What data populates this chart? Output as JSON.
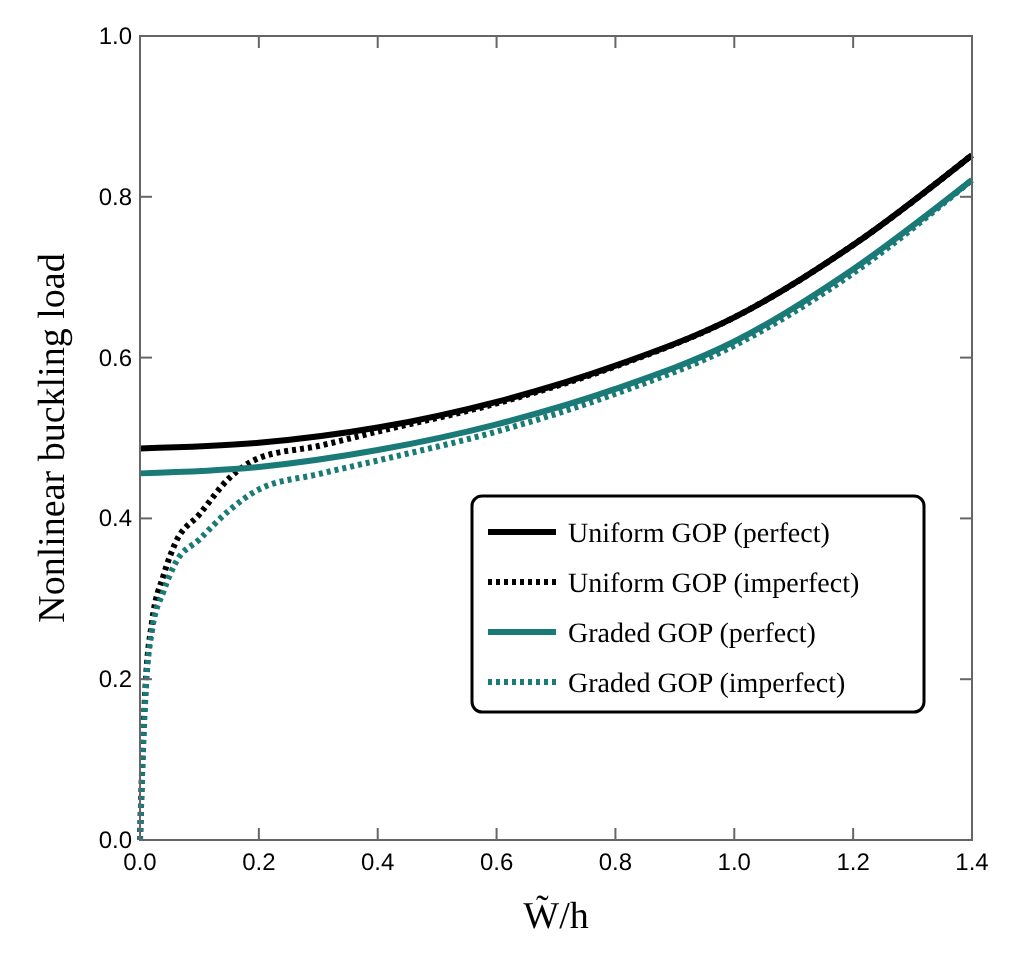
{
  "chart_data": {
    "type": "line",
    "xlabel": "W̃/h",
    "ylabel": "Nonlinear buckling load",
    "xlim": [
      0,
      1.4
    ],
    "ylim": [
      0,
      1
    ],
    "xticks": [
      {
        "value": 0,
        "label": "0.0"
      },
      0.2,
      0.4,
      0.6,
      0.8,
      {
        "value": 1,
        "label": "1.0"
      },
      1.2,
      1.4
    ],
    "yticks": [
      {
        "value": 0,
        "label": "0.0"
      },
      0.2,
      0.4,
      0.6,
      0.8,
      {
        "value": 1,
        "label": "1.0"
      }
    ],
    "grid": false,
    "legend": "right",
    "marker": "none",
    "series": [
      {
        "name": "Uniform GOP (perfect)",
        "color": "#000000",
        "line_style": "solid",
        "x": [
          0,
          0.2,
          0.4,
          0.6,
          0.8,
          1.0,
          1.2,
          1.4
        ],
        "values": [
          0.487,
          0.494,
          0.513,
          0.545,
          0.59,
          0.65,
          0.74,
          0.852
        ]
      },
      {
        "name": "Uniform GOP (imperfect)",
        "color": "#000000",
        "line_style": "dotted",
        "x": [
          0,
          0.005,
          0.01,
          0.02,
          0.04,
          0.06,
          0.1,
          0.15,
          0.2,
          0.3,
          0.4,
          0.6,
          0.8,
          1.0,
          1.2,
          1.4
        ],
        "values": [
          0,
          0.12,
          0.2,
          0.27,
          0.33,
          0.37,
          0.405,
          0.45,
          0.475,
          0.49,
          0.508,
          0.543,
          0.589,
          0.65,
          0.74,
          0.852
        ]
      },
      {
        "name": "Graded GOP (perfect)",
        "color": "#1a7a78",
        "line_style": "solid",
        "x": [
          0,
          0.2,
          0.4,
          0.6,
          0.8,
          1.0,
          1.2,
          1.4
        ],
        "values": [
          0.456,
          0.464,
          0.485,
          0.517,
          0.561,
          0.62,
          0.71,
          0.821
        ]
      },
      {
        "name": "Graded GOP (imperfect)",
        "color": "#1a7a78",
        "line_style": "dotted",
        "x": [
          0,
          0.005,
          0.01,
          0.02,
          0.04,
          0.06,
          0.1,
          0.15,
          0.2,
          0.3,
          0.4,
          0.6,
          0.8,
          1.0,
          1.2,
          1.4
        ],
        "values": [
          0,
          0.11,
          0.19,
          0.26,
          0.31,
          0.345,
          0.374,
          0.41,
          0.436,
          0.455,
          0.472,
          0.508,
          0.555,
          0.615,
          0.705,
          0.821
        ]
      }
    ]
  }
}
